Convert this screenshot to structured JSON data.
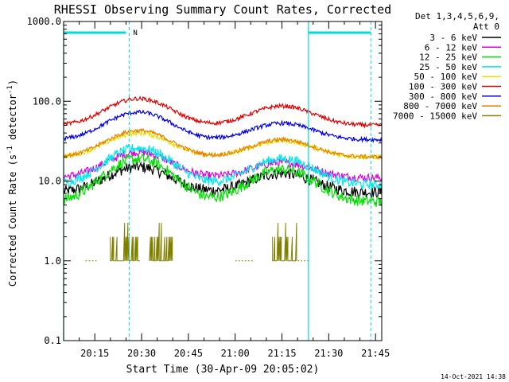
{
  "chart_data": {
    "type": "line",
    "title": "RHESSI Observing Summary Count Rates, Corrected",
    "xlabel": "Start Time (30-Apr-09 20:05:02)",
    "ylabel_prefix": "Corrected Count Rate (s",
    "ylabel_sup": "-1",
    "ylabel_suffix": " detector",
    "ylabel_close": ")",
    "yscale": "log",
    "ylim": [
      0.1,
      1000
    ],
    "yticks": [
      {
        "value": 0.1,
        "label": "0.1"
      },
      {
        "value": 1,
        "label": "1.0"
      },
      {
        "value": 10,
        "label": "10.0"
      },
      {
        "value": 100,
        "label": "100.0"
      },
      {
        "value": 1000,
        "label": "1000.0"
      }
    ],
    "xlim": [
      5,
      107
    ],
    "xticks": [
      {
        "value": 15,
        "label": "20:15"
      },
      {
        "value": 30,
        "label": "20:30"
      },
      {
        "value": 45,
        "label": "20:45"
      },
      {
        "value": 60,
        "label": "21:00"
      },
      {
        "value": 75,
        "label": "21:15"
      },
      {
        "value": 90,
        "label": "21:30"
      },
      {
        "value": 105,
        "label": "21:45"
      }
    ],
    "legend": {
      "header_line1": "Det 1,3,4,5,6,9,",
      "header_line2": "Att 0",
      "position": "top-right"
    },
    "markers": {
      "solid_vlines": [
        5.0,
        83.5
      ],
      "dashed_vlines": [
        26.0,
        103.5
      ],
      "night_label": "N"
    },
    "peaks": {
      "first_center": 29,
      "second_center": 75,
      "first_width": 9,
      "second_width": 9
    },
    "series": [
      {
        "name": "3 - 6 keV",
        "color": "#000000",
        "base": 7.2,
        "peak1": 15,
        "peak2": 12.5,
        "noise": 0.07
      },
      {
        "name": "6 - 12 keV",
        "color": "#e000e0",
        "base": 11,
        "peak1": 23,
        "peak2": 17,
        "noise": 0.05
      },
      {
        "name": "12 - 25 keV",
        "color": "#00e000",
        "base": 5.5,
        "peak1": 19,
        "peak2": 14,
        "noise": 0.07
      },
      {
        "name": "25 - 50 keV",
        "color": "#00e8e8",
        "base": 9,
        "peak1": 26,
        "peak2": 19,
        "noise": 0.06
      },
      {
        "name": "50 - 100 keV",
        "color": "#e8e000",
        "base": 20,
        "peak1": 40,
        "peak2": 32,
        "noise": 0.03
      },
      {
        "name": "100 - 300 keV",
        "color": "#e00000",
        "base": 50,
        "peak1": 108,
        "peak2": 87,
        "noise": 0.025
      },
      {
        "name": "300 - 800 keV",
        "color": "#0000e0",
        "base": 33,
        "peak1": 73,
        "peak2": 53,
        "noise": 0.025
      },
      {
        "name": "800 - 7000 keV",
        "color": "#e88000",
        "base": 20,
        "peak1": 43,
        "peak2": 33,
        "noise": 0.025
      },
      {
        "name": "7000 - 15000 keV",
        "color": "#808000",
        "base": 1.0,
        "peak1": 2.0,
        "peak2": 2.0,
        "noise": 0.0
      }
    ],
    "lowest_band_gaps": [
      [
        20,
        29.5
      ],
      [
        32.5,
        40
      ],
      [
        72,
        80
      ]
    ]
  },
  "timestamp": "14-Oct-2021 14:38"
}
